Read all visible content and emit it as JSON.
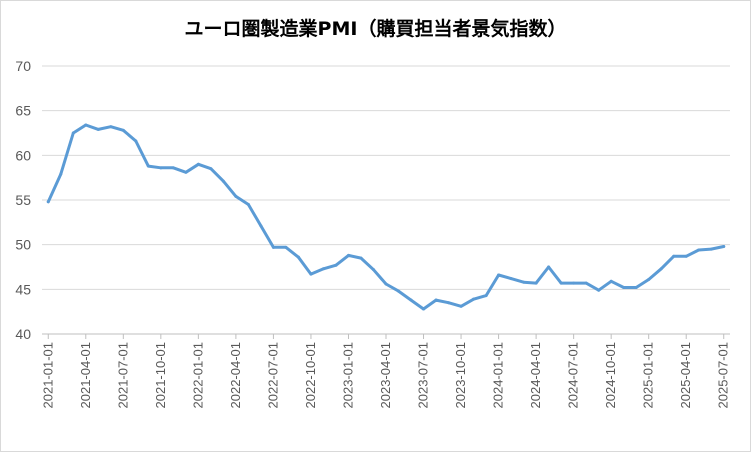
{
  "chart_data": {
    "type": "line",
    "title": "ユーロ圏製造業PMI（購買担当者景気指数）",
    "xlabel": "",
    "ylabel": "",
    "ylim": [
      40,
      70
    ],
    "yticks": [
      40,
      45,
      50,
      55,
      60,
      65,
      70
    ],
    "grid": true,
    "legend": "none",
    "color": "#5b9bd5",
    "x_tick_labels": [
      "2021-01-01",
      "2021-04-01",
      "2021-07-01",
      "2021-10-01",
      "2022-01-01",
      "2022-04-01",
      "2022-07-01",
      "2022-10-01",
      "2023-01-01",
      "2023-04-01",
      "2023-07-01",
      "2023-10-01",
      "2024-01-01",
      "2024-04-01",
      "2024-07-01",
      "2024-10-01",
      "2025-01-01",
      "2025-04-01",
      "2025-07-01"
    ],
    "x": [
      "2021-01-01",
      "2021-02-01",
      "2021-03-01",
      "2021-04-01",
      "2021-05-01",
      "2021-06-01",
      "2021-07-01",
      "2021-08-01",
      "2021-09-01",
      "2021-10-01",
      "2021-11-01",
      "2021-12-01",
      "2022-01-01",
      "2022-02-01",
      "2022-03-01",
      "2022-04-01",
      "2022-05-01",
      "2022-06-01",
      "2022-07-01",
      "2022-08-01",
      "2022-09-01",
      "2022-10-01",
      "2022-11-01",
      "2022-12-01",
      "2023-01-01",
      "2023-02-01",
      "2023-03-01",
      "2023-04-01",
      "2023-05-01",
      "2023-06-01",
      "2023-07-01",
      "2023-08-01",
      "2023-09-01",
      "2023-10-01",
      "2023-11-01",
      "2023-12-01",
      "2024-01-01",
      "2024-02-01",
      "2024-03-01",
      "2024-04-01",
      "2024-05-01",
      "2024-06-01",
      "2024-07-01",
      "2024-08-01",
      "2024-09-01",
      "2024-10-01",
      "2024-11-01",
      "2024-12-01",
      "2025-01-01",
      "2025-02-01",
      "2025-03-01",
      "2025-04-01",
      "2025-05-01",
      "2025-06-01",
      "2025-07-01"
    ],
    "series": [
      {
        "name": "",
        "values": [
          54.8,
          57.9,
          62.5,
          63.4,
          62.9,
          63.2,
          62.8,
          61.6,
          58.8,
          58.6,
          58.6,
          58.1,
          59.0,
          58.5,
          57.1,
          55.4,
          54.5,
          52.1,
          49.7,
          49.7,
          48.6,
          46.7,
          47.3,
          47.7,
          48.8,
          48.5,
          47.2,
          45.6,
          44.8,
          43.8,
          42.8,
          43.8,
          43.5,
          43.1,
          43.9,
          44.3,
          46.6,
          46.2,
          45.8,
          45.7,
          47.5,
          45.7,
          45.7,
          45.7,
          44.9,
          45.9,
          45.2,
          45.2,
          46.1,
          47.3,
          48.7,
          48.7,
          49.4,
          49.5,
          49.8
        ]
      }
    ]
  }
}
